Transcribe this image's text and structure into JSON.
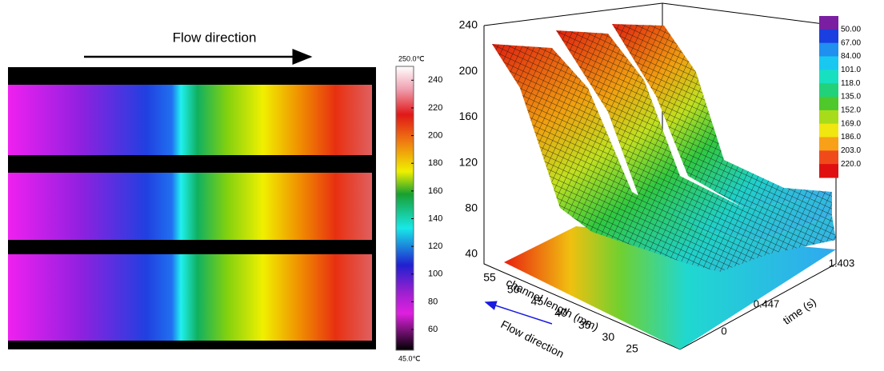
{
  "left_panel": {
    "annotation": "Flow direction",
    "colorbar": {
      "max": {
        "value": 250,
        "label": "250.0℃"
      },
      "min": {
        "value": 45,
        "label": "45.0℃"
      },
      "ticks": [
        240,
        220,
        200,
        180,
        160,
        140,
        120,
        100,
        80,
        60
      ]
    }
  },
  "right_panel": {
    "z_ticks": [
      240,
      200,
      160,
      120,
      80,
      40
    ],
    "x_label": "channel length (mm)",
    "x_ticks": [
      55,
      50,
      45,
      40,
      35,
      30,
      25
    ],
    "y_label": "time (s)",
    "y_ticks": [
      0,
      0.447,
      1.403
    ],
    "annotation": "Flow direction",
    "legend": {
      "levels": [
        {
          "value": 50,
          "label": "50.00"
        },
        {
          "value": 67,
          "label": "67.00"
        },
        {
          "value": 84,
          "label": "84.00"
        },
        {
          "value": 101,
          "label": "101.0"
        },
        {
          "value": 118,
          "label": "118.0"
        },
        {
          "value": 135,
          "label": "135.0"
        },
        {
          "value": 152,
          "label": "152.0"
        },
        {
          "value": 169,
          "label": "169.0"
        },
        {
          "value": 186,
          "label": "186.0"
        },
        {
          "value": 203,
          "label": "203.0"
        },
        {
          "value": 220,
          "label": "220.0"
        }
      ],
      "colors": [
        "#7a1fa2",
        "#1a3fe0",
        "#1f8ff0",
        "#19c8f0",
        "#17e0c0",
        "#22d27a",
        "#4ec82a",
        "#a8dc1a",
        "#f0e610",
        "#f8a018",
        "#f04a1a",
        "#e01010"
      ]
    }
  }
}
